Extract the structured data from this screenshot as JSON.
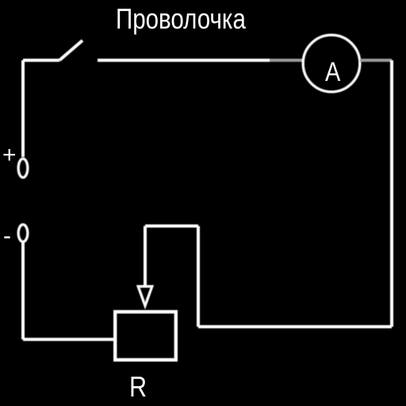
{
  "diagram": {
    "title": "Проволочка",
    "ammeter_label": "A",
    "plus_terminal_label": "+",
    "minus_terminal_label": "-",
    "resistor_label": "R",
    "colors": {
      "background": "#000000",
      "wire": "#ffffff",
      "ammeter_lead_wire": "#9a9a9a"
    }
  }
}
